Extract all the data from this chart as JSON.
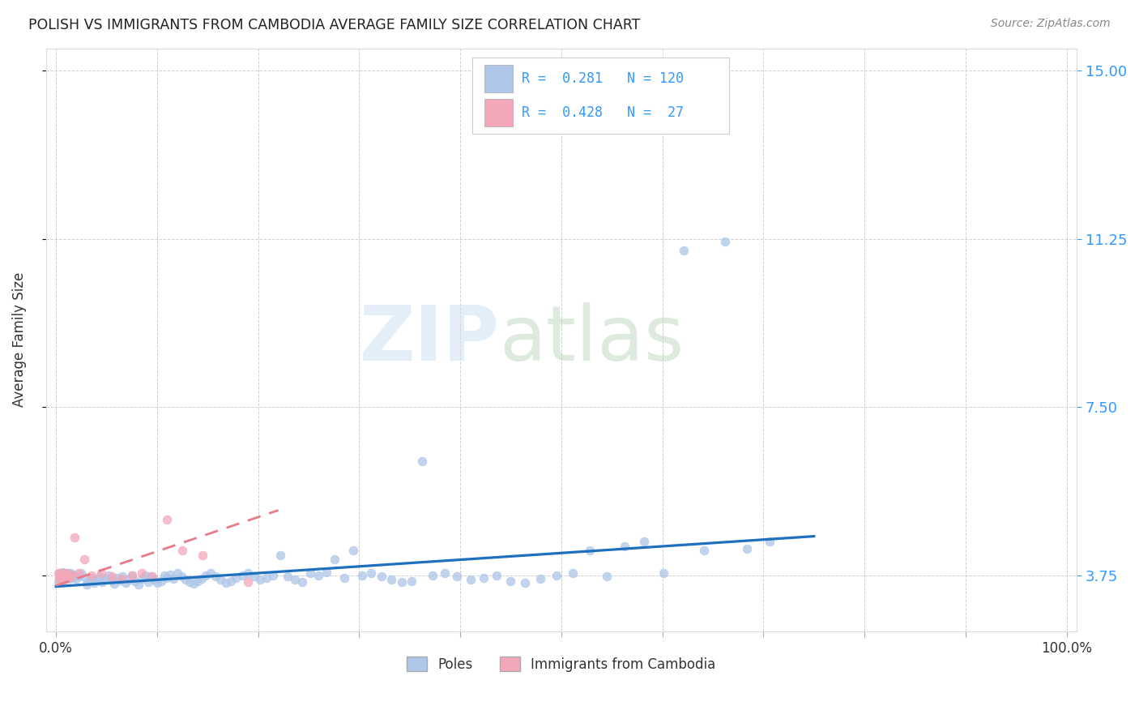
{
  "title": "POLISH VS IMMIGRANTS FROM CAMBODIA AVERAGE FAMILY SIZE CORRELATION CHART",
  "source": "Source: ZipAtlas.com",
  "ylabel": "Average Family Size",
  "yticks": [
    3.75,
    7.5,
    11.25,
    15.0
  ],
  "ylim": [
    2.5,
    15.5
  ],
  "xlim": [
    -0.01,
    1.01
  ],
  "poles_color": "#aec6e8",
  "cambodia_color": "#f4a7b9",
  "poles_line_color": "#1f6fbf",
  "cambodia_line_color": "#e87a8a",
  "background_color": "#ffffff",
  "grid_color": "#cccccc",
  "title_color": "#222222",
  "axis_label_color": "#333333",
  "right_tick_color": "#3399ff",
  "poles_x": [
    0.002,
    0.003,
    0.004,
    0.004,
    0.005,
    0.005,
    0.006,
    0.006,
    0.007,
    0.007,
    0.008,
    0.008,
    0.008,
    0.009,
    0.009,
    0.01,
    0.01,
    0.011,
    0.011,
    0.012,
    0.012,
    0.013,
    0.013,
    0.014,
    0.015,
    0.016,
    0.017,
    0.018,
    0.02,
    0.022,
    0.025,
    0.028,
    0.03,
    0.033,
    0.035,
    0.038,
    0.04,
    0.043,
    0.046,
    0.049,
    0.052,
    0.055,
    0.058,
    0.06,
    0.063,
    0.066,
    0.069,
    0.072,
    0.075,
    0.078,
    0.082,
    0.085,
    0.088,
    0.091,
    0.094,
    0.097,
    0.1,
    0.104,
    0.107,
    0.11,
    0.113,
    0.116,
    0.12,
    0.124,
    0.128,
    0.132,
    0.136,
    0.14,
    0.144,
    0.148,
    0.153,
    0.158,
    0.163,
    0.168,
    0.173,
    0.178,
    0.184,
    0.19,
    0.196,
    0.202,
    0.208,
    0.215,
    0.222,
    0.229,
    0.236,
    0.244,
    0.252,
    0.26,
    0.268,
    0.276,
    0.285,
    0.294,
    0.303,
    0.312,
    0.322,
    0.332,
    0.342,
    0.352,
    0.362,
    0.373,
    0.385,
    0.397,
    0.41,
    0.423,
    0.436,
    0.45,
    0.464,
    0.479,
    0.495,
    0.511,
    0.528,
    0.545,
    0.563,
    0.582,
    0.601,
    0.621,
    0.641,
    0.662,
    0.684,
    0.706
  ],
  "poles_y": [
    3.6,
    3.7,
    3.75,
    3.8,
    3.72,
    3.65,
    3.78,
    3.82,
    3.68,
    3.74,
    3.8,
    3.7,
    3.76,
    3.72,
    3.68,
    3.74,
    3.8,
    3.71,
    3.77,
    3.69,
    3.75,
    3.72,
    3.68,
    3.8,
    3.74,
    3.7,
    3.76,
    3.72,
    3.68,
    3.74,
    3.8,
    3.71,
    3.55,
    3.62,
    3.7,
    3.58,
    3.65,
    3.72,
    3.6,
    3.68,
    3.75,
    3.63,
    3.56,
    3.7,
    3.64,
    3.72,
    3.58,
    3.66,
    3.74,
    3.62,
    3.55,
    3.68,
    3.75,
    3.6,
    3.72,
    3.65,
    3.58,
    3.62,
    3.74,
    3.7,
    3.76,
    3.68,
    3.8,
    3.72,
    3.65,
    3.6,
    3.56,
    3.62,
    3.68,
    3.74,
    3.8,
    3.72,
    3.65,
    3.58,
    3.62,
    3.7,
    3.75,
    3.8,
    3.72,
    3.65,
    3.7,
    3.75,
    4.2,
    3.72,
    3.65,
    3.6,
    3.8,
    3.75,
    3.82,
    4.1,
    3.7,
    4.3,
    3.75,
    3.8,
    3.72,
    3.65,
    3.6,
    3.62,
    6.3,
    3.74,
    3.8,
    3.72,
    3.65,
    3.7,
    3.75,
    3.62,
    3.58,
    3.68,
    3.74,
    3.8,
    4.3,
    3.72,
    4.4,
    4.5,
    3.8,
    11.0,
    4.3,
    11.2,
    4.35,
    4.5
  ],
  "cambodia_x": [
    0.002,
    0.003,
    0.004,
    0.005,
    0.006,
    0.007,
    0.008,
    0.009,
    0.01,
    0.011,
    0.012,
    0.013,
    0.015,
    0.018,
    0.022,
    0.028,
    0.035,
    0.045,
    0.055,
    0.065,
    0.075,
    0.085,
    0.095,
    0.11,
    0.125,
    0.145,
    0.19
  ],
  "cambodia_y": [
    3.8,
    3.7,
    3.75,
    3.6,
    3.72,
    3.8,
    3.65,
    3.68,
    3.74,
    3.8,
    3.7,
    3.76,
    3.72,
    4.6,
    3.8,
    4.1,
    3.74,
    3.8,
    3.72,
    3.68,
    3.74,
    3.8,
    3.72,
    5.0,
    4.3,
    4.2,
    3.6
  ],
  "poles_trend_x": [
    0.0,
    0.75
  ],
  "poles_trend_y": [
    3.5,
    4.62
  ],
  "cambodia_trend_x": [
    0.0,
    0.22
  ],
  "cambodia_trend_y": [
    3.52,
    5.2
  ],
  "legend_r1": "R =  0.281   N = 120",
  "legend_r2": "R =  0.428   N =  27",
  "bottom_legend_1": "Poles",
  "bottom_legend_2": "Immigrants from Cambodia"
}
